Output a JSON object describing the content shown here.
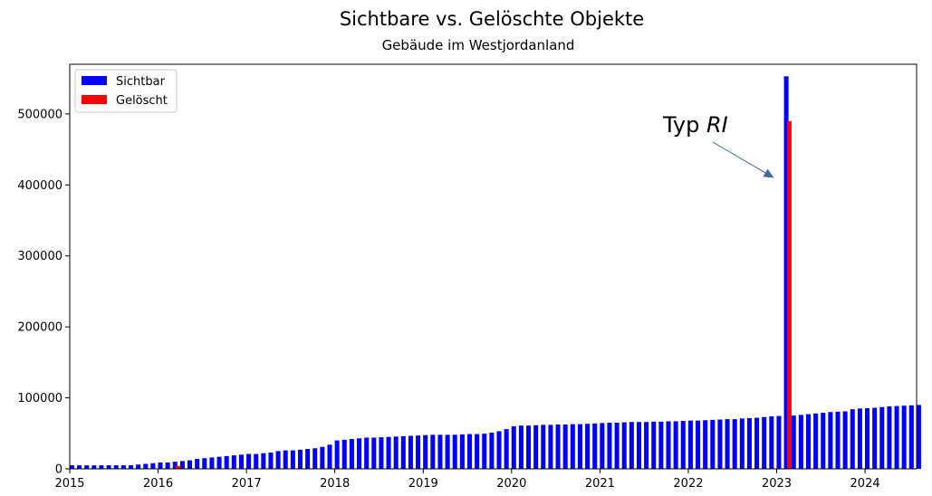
{
  "chart_data": {
    "type": "bar",
    "title": "Sichtbare vs. Gelöschte Objekte",
    "subtitle": "Gebäude im Westjordanland",
    "xlabel": "",
    "ylabel": "",
    "xlim": [
      "2015-01",
      "2024-08"
    ],
    "ylim": [
      0,
      570000
    ],
    "x_ticks": [
      "2015",
      "2016",
      "2017",
      "2018",
      "2019",
      "2020",
      "2021",
      "2022",
      "2023",
      "2024"
    ],
    "y_ticks": [
      "0",
      "100000",
      "200000",
      "300000",
      "400000",
      "500000"
    ],
    "y_tick_values": [
      0,
      100000,
      200000,
      300000,
      400000,
      500000
    ],
    "grid": false,
    "legend": "top-left",
    "series": [
      {
        "name": "Sichtbar",
        "color": "#0000ff",
        "points": [
          [
            "2015-01",
            5000
          ],
          [
            "2015-02",
            5000
          ],
          [
            "2015-03",
            5000
          ],
          [
            "2015-04",
            5000
          ],
          [
            "2015-05",
            5000
          ],
          [
            "2015-06",
            5000
          ],
          [
            "2015-07",
            5000
          ],
          [
            "2015-08",
            5000
          ],
          [
            "2015-09",
            5000
          ],
          [
            "2015-10",
            6000
          ],
          [
            "2015-11",
            7000
          ],
          [
            "2015-12",
            8000
          ],
          [
            "2016-01",
            9000
          ],
          [
            "2016-02",
            9000
          ],
          [
            "2016-03",
            10000
          ],
          [
            "2016-04",
            11000
          ],
          [
            "2016-05",
            12000
          ],
          [
            "2016-06",
            14000
          ],
          [
            "2016-07",
            15000
          ],
          [
            "2016-08",
            16000
          ],
          [
            "2016-09",
            17000
          ],
          [
            "2016-10",
            18000
          ],
          [
            "2016-11",
            19000
          ],
          [
            "2016-12",
            20000
          ],
          [
            "2017-01",
            21000
          ],
          [
            "2017-02",
            21000
          ],
          [
            "2017-03",
            22000
          ],
          [
            "2017-04",
            23000
          ],
          [
            "2017-05",
            25000
          ],
          [
            "2017-06",
            26000
          ],
          [
            "2017-07",
            26000
          ],
          [
            "2017-08",
            27000
          ],
          [
            "2017-09",
            28000
          ],
          [
            "2017-10",
            29000
          ],
          [
            "2017-11",
            31000
          ],
          [
            "2017-12",
            34000
          ],
          [
            "2018-01",
            40000
          ],
          [
            "2018-02",
            41000
          ],
          [
            "2018-03",
            42000
          ],
          [
            "2018-04",
            43000
          ],
          [
            "2018-05",
            44000
          ],
          [
            "2018-06",
            44000
          ],
          [
            "2018-07",
            44500
          ],
          [
            "2018-08",
            45000
          ],
          [
            "2018-09",
            45500
          ],
          [
            "2018-10",
            46000
          ],
          [
            "2018-11",
            46500
          ],
          [
            "2018-12",
            47000
          ],
          [
            "2019-01",
            47500
          ],
          [
            "2019-02",
            48000
          ],
          [
            "2019-03",
            48000
          ],
          [
            "2019-04",
            48000
          ],
          [
            "2019-05",
            48000
          ],
          [
            "2019-06",
            48500
          ],
          [
            "2019-07",
            49000
          ],
          [
            "2019-08",
            49000
          ],
          [
            "2019-09",
            49500
          ],
          [
            "2019-10",
            51000
          ],
          [
            "2019-11",
            53000
          ],
          [
            "2019-12",
            56000
          ],
          [
            "2020-01",
            60000
          ],
          [
            "2020-02",
            61000
          ],
          [
            "2020-03",
            61000
          ],
          [
            "2020-04",
            61500
          ],
          [
            "2020-05",
            62000
          ],
          [
            "2020-06",
            62000
          ],
          [
            "2020-07",
            62500
          ],
          [
            "2020-08",
            62500
          ],
          [
            "2020-09",
            63000
          ],
          [
            "2020-10",
            63000
          ],
          [
            "2020-11",
            63500
          ],
          [
            "2020-12",
            64000
          ],
          [
            "2021-01",
            64500
          ],
          [
            "2021-02",
            65000
          ],
          [
            "2021-03",
            65000
          ],
          [
            "2021-04",
            65500
          ],
          [
            "2021-05",
            66000
          ],
          [
            "2021-06",
            66000
          ],
          [
            "2021-07",
            66000
          ],
          [
            "2021-08",
            66500
          ],
          [
            "2021-09",
            66500
          ],
          [
            "2021-10",
            67000
          ],
          [
            "2021-11",
            67000
          ],
          [
            "2021-12",
            67500
          ],
          [
            "2022-01",
            68000
          ],
          [
            "2022-02",
            68000
          ],
          [
            "2022-03",
            68500
          ],
          [
            "2022-04",
            69000
          ],
          [
            "2022-05",
            69500
          ],
          [
            "2022-06",
            70000
          ],
          [
            "2022-07",
            70000
          ],
          [
            "2022-08",
            71000
          ],
          [
            "2022-09",
            71500
          ],
          [
            "2022-10",
            72000
          ],
          [
            "2022-11",
            73000
          ],
          [
            "2022-12",
            74000
          ],
          [
            "2023-01",
            74500
          ],
          [
            "2023-02",
            553000
          ],
          [
            "2023-03",
            75000
          ],
          [
            "2023-04",
            76000
          ],
          [
            "2023-05",
            77000
          ],
          [
            "2023-06",
            78000
          ],
          [
            "2023-07",
            79000
          ],
          [
            "2023-08",
            80000
          ],
          [
            "2023-09",
            80500
          ],
          [
            "2023-10",
            81000
          ],
          [
            "2023-11",
            84000
          ],
          [
            "2023-12",
            85000
          ],
          [
            "2024-01",
            85500
          ],
          [
            "2024-02",
            86000
          ],
          [
            "2024-03",
            87000
          ],
          [
            "2024-04",
            88000
          ],
          [
            "2024-05",
            88500
          ],
          [
            "2024-06",
            89000
          ],
          [
            "2024-07",
            89500
          ],
          [
            "2024-08",
            90000
          ]
        ]
      },
      {
        "name": "Gelöscht",
        "color": "#ff0000",
        "points": [
          [
            "2016-03",
            4000
          ],
          [
            "2023-02",
            490000
          ]
        ]
      }
    ],
    "annotations": [
      {
        "text_plain": "Typ ",
        "text_italic": "RI",
        "arrow_to": [
          "2023-01",
          410000
        ],
        "arrow_color": "#3a6aa8"
      }
    ]
  }
}
